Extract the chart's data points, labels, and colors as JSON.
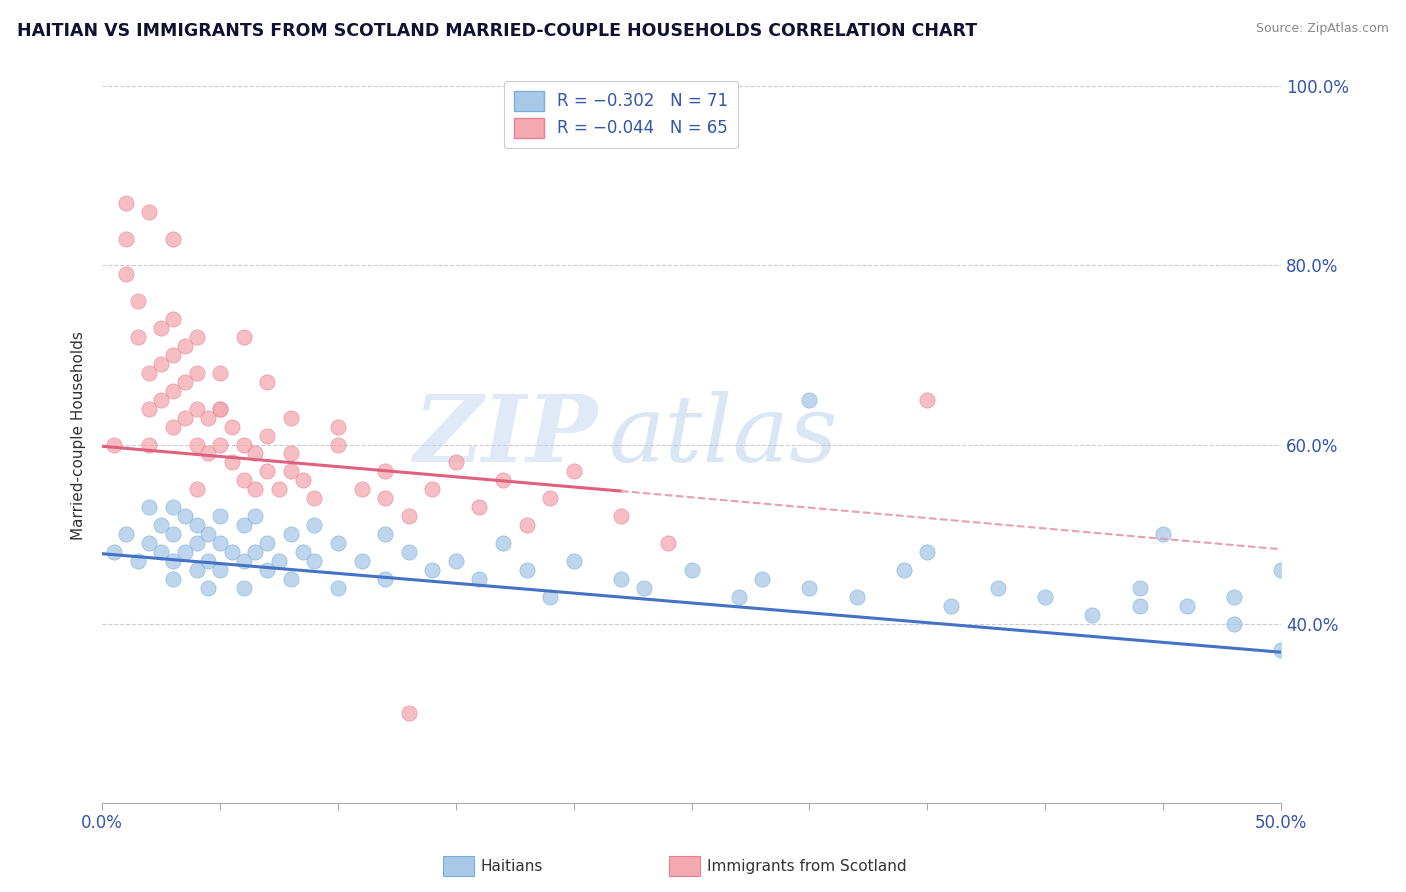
{
  "title": "HAITIAN VS IMMIGRANTS FROM SCOTLAND MARRIED-COUPLE HOUSEHOLDS CORRELATION CHART",
  "source": "Source: ZipAtlas.com",
  "ylabel": "Married-couple Households",
  "xlim": [
    0.0,
    0.5
  ],
  "ylim": [
    0.2,
    1.02
  ],
  "right_yticks": [
    0.4,
    0.6,
    0.8,
    1.0
  ],
  "right_ytick_labels": [
    "40.0%",
    "60.0%",
    "80.0%",
    "100.0%"
  ],
  "blue_color": "#a8c8e8",
  "blue_edge_color": "#7aafd4",
  "pink_color": "#f4a8b0",
  "pink_edge_color": "#e88090",
  "blue_line_color": "#4472c4",
  "pink_line_color": "#e06080",
  "pink_dash_color": "#e8a0b0",
  "watermark_zip": "ZIP",
  "watermark_atlas": "atlas",
  "legend_label1": "R = −0.302   N = 71",
  "legend_label2": "R = −0.044   N = 65",
  "blue_scatter_x": [
    0.005,
    0.01,
    0.015,
    0.02,
    0.02,
    0.025,
    0.025,
    0.03,
    0.03,
    0.03,
    0.03,
    0.035,
    0.035,
    0.04,
    0.04,
    0.04,
    0.045,
    0.045,
    0.045,
    0.05,
    0.05,
    0.05,
    0.055,
    0.06,
    0.06,
    0.06,
    0.065,
    0.065,
    0.07,
    0.07,
    0.075,
    0.08,
    0.08,
    0.085,
    0.09,
    0.09,
    0.1,
    0.1,
    0.11,
    0.12,
    0.12,
    0.13,
    0.14,
    0.15,
    0.16,
    0.17,
    0.18,
    0.19,
    0.2,
    0.22,
    0.23,
    0.25,
    0.27,
    0.28,
    0.3,
    0.32,
    0.34,
    0.36,
    0.38,
    0.4,
    0.42,
    0.44,
    0.46,
    0.48,
    0.5,
    0.3,
    0.35,
    0.45,
    0.48,
    0.5,
    0.44
  ],
  "blue_scatter_y": [
    0.48,
    0.5,
    0.47,
    0.49,
    0.53,
    0.48,
    0.51,
    0.47,
    0.5,
    0.53,
    0.45,
    0.48,
    0.52,
    0.49,
    0.46,
    0.51,
    0.47,
    0.5,
    0.44,
    0.49,
    0.46,
    0.52,
    0.48,
    0.47,
    0.51,
    0.44,
    0.48,
    0.52,
    0.46,
    0.49,
    0.47,
    0.5,
    0.45,
    0.48,
    0.47,
    0.51,
    0.49,
    0.44,
    0.47,
    0.5,
    0.45,
    0.48,
    0.46,
    0.47,
    0.45,
    0.49,
    0.46,
    0.43,
    0.47,
    0.45,
    0.44,
    0.46,
    0.43,
    0.45,
    0.44,
    0.43,
    0.46,
    0.42,
    0.44,
    0.43,
    0.41,
    0.44,
    0.42,
    0.4,
    0.37,
    0.65,
    0.48,
    0.5,
    0.43,
    0.46,
    0.42
  ],
  "pink_scatter_x": [
    0.005,
    0.01,
    0.01,
    0.01,
    0.015,
    0.015,
    0.02,
    0.02,
    0.02,
    0.025,
    0.025,
    0.025,
    0.03,
    0.03,
    0.03,
    0.03,
    0.035,
    0.035,
    0.035,
    0.04,
    0.04,
    0.04,
    0.04,
    0.045,
    0.045,
    0.05,
    0.05,
    0.05,
    0.055,
    0.055,
    0.06,
    0.06,
    0.065,
    0.065,
    0.07,
    0.07,
    0.075,
    0.08,
    0.08,
    0.085,
    0.09,
    0.1,
    0.11,
    0.12,
    0.13,
    0.14,
    0.15,
    0.16,
    0.17,
    0.18,
    0.19,
    0.2,
    0.13,
    0.22,
    0.24,
    0.07,
    0.04,
    0.03,
    0.05,
    0.02,
    0.06,
    0.08,
    0.1,
    0.12,
    0.35
  ],
  "pink_scatter_y": [
    0.6,
    0.87,
    0.83,
    0.79,
    0.76,
    0.72,
    0.68,
    0.64,
    0.6,
    0.73,
    0.69,
    0.65,
    0.62,
    0.66,
    0.7,
    0.74,
    0.63,
    0.67,
    0.71,
    0.6,
    0.64,
    0.68,
    0.72,
    0.59,
    0.63,
    0.6,
    0.64,
    0.68,
    0.58,
    0.62,
    0.56,
    0.6,
    0.55,
    0.59,
    0.57,
    0.61,
    0.55,
    0.59,
    0.63,
    0.56,
    0.54,
    0.6,
    0.55,
    0.57,
    0.52,
    0.55,
    0.58,
    0.53,
    0.56,
    0.51,
    0.54,
    0.57,
    0.3,
    0.52,
    0.49,
    0.67,
    0.55,
    0.83,
    0.64,
    0.86,
    0.72,
    0.57,
    0.62,
    0.54,
    0.65
  ],
  "blue_line_x": [
    0.0,
    0.5
  ],
  "blue_line_y": [
    0.478,
    0.368
  ],
  "pink_solid_line_x": [
    0.0,
    0.22
  ],
  "pink_solid_line_y": [
    0.598,
    0.548
  ],
  "pink_dash_line_x": [
    0.22,
    0.5
  ],
  "pink_dash_line_y": [
    0.548,
    0.483
  ]
}
